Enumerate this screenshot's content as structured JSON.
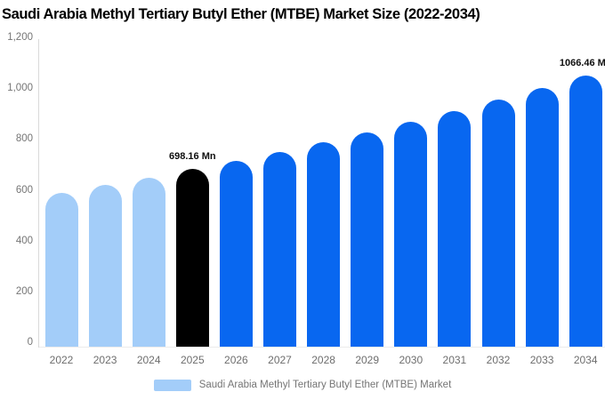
{
  "chart_data": {
    "type": "bar",
    "title": "Saudi Arabia Methyl Tertiary Butyl Ether (MTBE) Market Size (2022-2034)",
    "categories": [
      "2022",
      "2023",
      "2024",
      "2025",
      "2026",
      "2027",
      "2028",
      "2029",
      "2030",
      "2031",
      "2032",
      "2033",
      "2034"
    ],
    "values": [
      606,
      635,
      666,
      698.16,
      732,
      767,
      804,
      843,
      884,
      926,
      971,
      1018,
      1066.46
    ],
    "unit": "Mn",
    "segments": [
      "historical",
      "historical",
      "historical",
      "current",
      "forecast",
      "forecast",
      "forecast",
      "forecast",
      "forecast",
      "forecast",
      "forecast",
      "forecast",
      "forecast"
    ],
    "segment_colors": {
      "historical": "#A3CDF9",
      "current": "#000000",
      "forecast": "#0867F0"
    },
    "annotations": [
      {
        "category": "2025",
        "text": "698.16 Mn"
      },
      {
        "category": "2034",
        "text": "1066.46 Mn"
      }
    ],
    "ylim": [
      0,
      1200
    ],
    "yticks": [
      {
        "value": 0,
        "label": "0"
      },
      {
        "value": 200,
        "label": "200"
      },
      {
        "value": 400,
        "label": "400"
      },
      {
        "value": 600,
        "label": "600"
      },
      {
        "value": 800,
        "label": "800"
      },
      {
        "value": 1000,
        "label": "1,000"
      },
      {
        "value": 1200,
        "label": "1,200"
      }
    ],
    "grid": false,
    "legend_position": "bottom",
    "legend_label": "Saudi Arabia Methyl Tertiary Butyl Ether (MTBE) Market"
  }
}
